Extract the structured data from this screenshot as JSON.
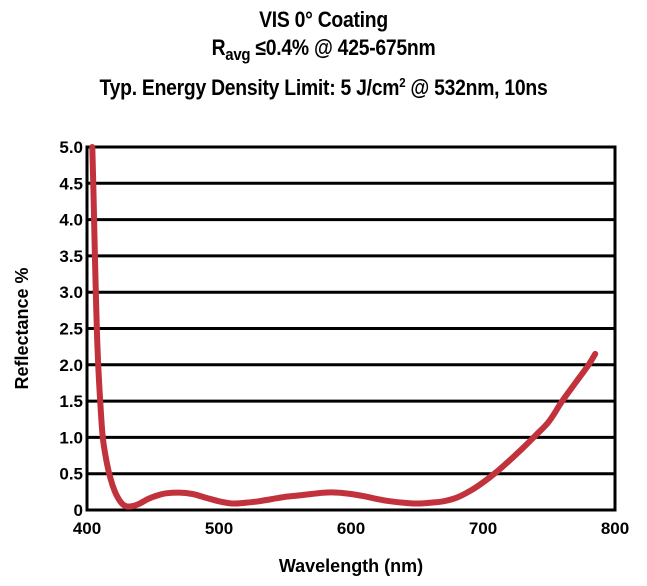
{
  "chart_data": {
    "type": "line",
    "title": "VIS 0° Coating",
    "subtitle_main": "R",
    "subtitle_sub": "avg",
    "subtitle_rest": " ≤0.4% @ 425-675nm",
    "subtitle2_pre": "Typ. Energy Density Limit: 5 J/cm",
    "subtitle2_sup": "2",
    "subtitle2_post": " @ 532nm, 10ns",
    "xlabel": "Wavelength (nm)",
    "ylabel": "Reflectance %",
    "xlim": [
      400,
      800
    ],
    "ylim": [
      0,
      5
    ],
    "xticks": [
      "400",
      "500",
      "600",
      "700",
      "800"
    ],
    "yticks": [
      "0",
      "0.5",
      "1.0",
      "1.5",
      "2.0",
      "2.5",
      "3.0",
      "3.5",
      "4.0",
      "4.5",
      "5.0"
    ],
    "grid": "horizontal",
    "series": [
      {
        "color": "#c1323c",
        "x": [
          404,
          405,
          406,
          407,
          408,
          410,
          412,
          415,
          418,
          421,
          424,
          427,
          430,
          433,
          436,
          440,
          445,
          450,
          455,
          460,
          470,
          480,
          490,
          500,
          510,
          520,
          530,
          540,
          550,
          560,
          570,
          580,
          590,
          600,
          610,
          620,
          630,
          640,
          650,
          660,
          670,
          680,
          690,
          700,
          710,
          720,
          730,
          740,
          750,
          760,
          770,
          780,
          785
        ],
        "y": [
          5.0,
          4.3,
          3.5,
          2.8,
          2.2,
          1.5,
          1.0,
          0.65,
          0.42,
          0.26,
          0.15,
          0.08,
          0.05,
          0.05,
          0.06,
          0.09,
          0.14,
          0.18,
          0.21,
          0.23,
          0.24,
          0.22,
          0.17,
          0.12,
          0.09,
          0.1,
          0.12,
          0.15,
          0.18,
          0.2,
          0.22,
          0.24,
          0.24,
          0.22,
          0.19,
          0.15,
          0.12,
          0.1,
          0.09,
          0.1,
          0.12,
          0.17,
          0.26,
          0.38,
          0.52,
          0.68,
          0.85,
          1.03,
          1.22,
          1.5,
          1.75,
          2.0,
          2.15
        ]
      }
    ]
  }
}
